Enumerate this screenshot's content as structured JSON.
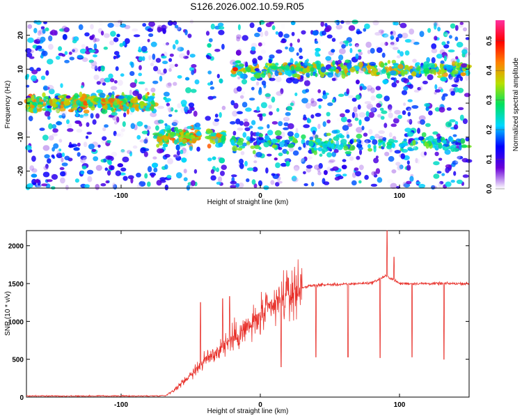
{
  "figure_title": "S126.2026.002.10.59.R05",
  "chart_data": [
    {
      "type": "heatmap",
      "title": "S126.2026.002.10.59.R05",
      "xlabel": "Height of straight line (km)",
      "ylabel": "Frequency (Hz)",
      "xlim": [
        -168,
        150
      ],
      "ylim": [
        -25,
        24
      ],
      "xticks": [
        -100,
        0,
        100
      ],
      "yticks": [
        -20,
        -10,
        0,
        10,
        20
      ],
      "colorbar": {
        "label": "Normalized spectral amplitude",
        "range": [
          0,
          0.57
        ],
        "ticks": [
          0.0,
          0.1,
          0.2,
          0.3,
          0.4,
          0.5
        ],
        "colormap": [
          "#ffffff",
          "#6a00d8",
          "#0000ff",
          "#00d8ff",
          "#00e060",
          "#b8e000",
          "#ff8000",
          "#ff0000",
          "#ff30a0"
        ]
      },
      "features": [
        {
          "name": "low-frequency band",
          "x_range": [
            -168,
            -75
          ],
          "freq_center": 0,
          "freq_halfwidth": 4
        },
        {
          "name": "descending tail",
          "x_range": [
            -75,
            -20
          ],
          "freq_center": -10
        },
        {
          "name": "upper band",
          "x_range": [
            -20,
            150
          ],
          "freq_center": 10
        },
        {
          "name": "lower band",
          "x_range": [
            -20,
            150
          ],
          "freq_center": -12
        }
      ],
      "gaps_x": [
        [
          -44,
          -38
        ],
        [
          -26,
          -20
        ]
      ]
    },
    {
      "type": "line",
      "xlabel": "Height of straight line (km)",
      "ylabel": "SNR (10 * v/v)",
      "xlim": [
        -168,
        150
      ],
      "ylim": [
        0,
        2200
      ],
      "xticks": [
        -100,
        0,
        100
      ],
      "yticks": [
        0,
        500,
        1000,
        1500,
        2000
      ],
      "color": "#e8302a",
      "x": [
        -168,
        -80,
        -68,
        -60,
        -50,
        -40,
        -30,
        -20,
        -10,
        0,
        10,
        20,
        30,
        40,
        60,
        80,
        90,
        95,
        100,
        120,
        150
      ],
      "y": [
        15,
        15,
        20,
        120,
        300,
        480,
        620,
        780,
        900,
        1050,
        1200,
        1350,
        1450,
        1480,
        1490,
        1510,
        1600,
        1560,
        1500,
        1500,
        1500
      ],
      "dropouts": [
        {
          "x": 15,
          "y": 400
        },
        {
          "x": 40,
          "y": 530
        },
        {
          "x": 63,
          "y": 530
        },
        {
          "x": 86,
          "y": 520
        },
        {
          "x": 109,
          "y": 530
        },
        {
          "x": 132,
          "y": 500
        }
      ],
      "peaks": [
        {
          "x": -43,
          "y": 1250
        },
        {
          "x": -27,
          "y": 1300
        },
        {
          "x": -22,
          "y": 1330
        },
        {
          "x": 91,
          "y": 2200
        },
        {
          "x": 96,
          "y": 1850
        }
      ]
    }
  ]
}
